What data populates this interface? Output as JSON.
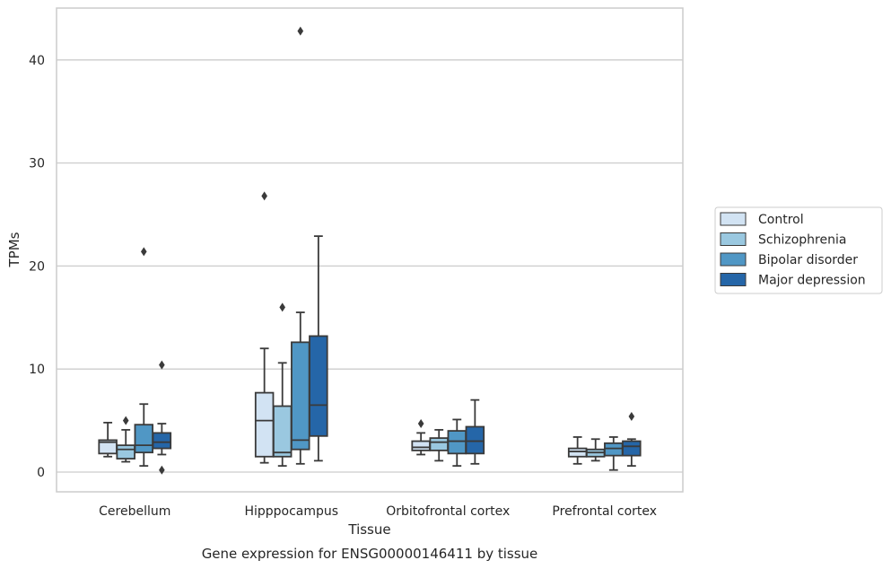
{
  "chart_data": {
    "type": "box",
    "title": "",
    "caption": "Gene expression for ENSG00000146411 by tissue",
    "xlabel": "Tissue",
    "ylabel": "TPMs",
    "ylim": [
      -1.8,
      45
    ],
    "yticks": [
      0,
      10,
      20,
      30,
      40
    ],
    "grid": true,
    "legend_position": "right",
    "categories": [
      "Cerebellum",
      "Hipppocampus",
      "Orbitofrontal cortex",
      "Prefrontal cortex"
    ],
    "series": [
      {
        "name": "Control",
        "color": "#d2e3f3",
        "boxes": [
          {
            "min": 1.5,
            "q1": 1.8,
            "median": 2.9,
            "q3": 3.1,
            "max": 4.8,
            "outliers": []
          },
          {
            "min": 0.9,
            "q1": 1.5,
            "median": 5.0,
            "q3": 7.7,
            "max": 12.0,
            "outliers": [
              26.8
            ]
          },
          {
            "min": 1.7,
            "q1": 2.1,
            "median": 2.4,
            "q3": 3.0,
            "max": 3.8,
            "outliers": [
              4.7
            ]
          },
          {
            "min": 0.8,
            "q1": 1.5,
            "median": 2.0,
            "q3": 2.3,
            "max": 3.4,
            "outliers": []
          }
        ]
      },
      {
        "name": "Schizophrenia",
        "color": "#9ac8e0",
        "boxes": [
          {
            "min": 1.0,
            "q1": 1.3,
            "median": 2.2,
            "q3": 2.6,
            "max": 4.1,
            "outliers": [
              5.0
            ]
          },
          {
            "min": 0.6,
            "q1": 1.5,
            "median": 1.9,
            "q3": 6.4,
            "max": 10.6,
            "outliers": [
              16.0
            ]
          },
          {
            "min": 1.1,
            "q1": 2.1,
            "median": 2.9,
            "q3": 3.3,
            "max": 4.1,
            "outliers": []
          },
          {
            "min": 1.1,
            "q1": 1.5,
            "median": 1.9,
            "q3": 2.2,
            "max": 3.2,
            "outliers": []
          }
        ]
      },
      {
        "name": "Bipolar disorder",
        "color": "#5097c5",
        "boxes": [
          {
            "min": 0.6,
            "q1": 1.9,
            "median": 2.6,
            "q3": 4.6,
            "max": 6.6,
            "outliers": [
              21.4
            ]
          },
          {
            "min": 0.8,
            "q1": 2.2,
            "median": 3.1,
            "q3": 12.6,
            "max": 15.5,
            "outliers": [
              42.8
            ]
          },
          {
            "min": 0.6,
            "q1": 1.8,
            "median": 3.0,
            "q3": 4.0,
            "max": 5.1,
            "outliers": []
          },
          {
            "min": 0.2,
            "q1": 1.6,
            "median": 2.3,
            "q3": 2.8,
            "max": 3.4,
            "outliers": []
          }
        ]
      },
      {
        "name": "Major depression",
        "color": "#2566a8",
        "boxes": [
          {
            "min": 1.7,
            "q1": 2.3,
            "median": 2.9,
            "q3": 3.8,
            "max": 4.7,
            "outliers": [
              10.4,
              0.2
            ]
          },
          {
            "min": 1.1,
            "q1": 3.5,
            "median": 6.5,
            "q3": 13.2,
            "max": 22.9,
            "outliers": []
          },
          {
            "min": 0.8,
            "q1": 1.8,
            "median": 3.0,
            "q3": 4.4,
            "max": 7.0,
            "outliers": []
          },
          {
            "min": 0.6,
            "q1": 1.6,
            "median": 2.5,
            "q3": 3.0,
            "max": 3.2,
            "outliers": [
              5.4
            ]
          }
        ]
      }
    ]
  }
}
